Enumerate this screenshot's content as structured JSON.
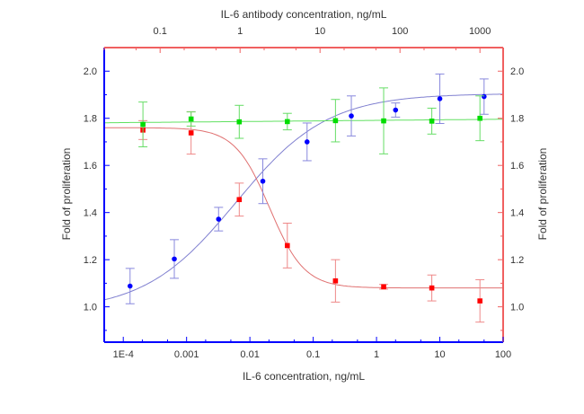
{
  "chart_data": {
    "type": "scatter",
    "title": "",
    "xlabel": "IL-6 concentration, ng/mL",
    "x2label": "IL-6 antibody concentration, ng/mL",
    "ylabel": "Fold of proliferation",
    "y2label": "Fold of proliferation",
    "x_scale": "log",
    "xlim": [
      5e-05,
      100
    ],
    "x2lim": [
      0.02,
      1950
    ],
    "ylim": [
      0.85,
      2.1
    ],
    "x_ticks": [
      "1E-4",
      "0.001",
      "0.01",
      "0.1",
      "1",
      "10",
      "100"
    ],
    "x2_ticks": [
      "0.1",
      "1",
      "10",
      "100",
      "1000"
    ],
    "y_ticks": [
      "1.0",
      "1.2",
      "1.4",
      "1.6",
      "1.8",
      "2.0"
    ],
    "y2_ticks": [
      "1.0",
      "1.2",
      "1.4",
      "1.6",
      "1.8",
      "2.0"
    ],
    "grid": false,
    "axis_colors": {
      "bottom": "#0000ff",
      "left": "#0000ff",
      "top": "#f06060",
      "right": "#f06060"
    },
    "series": [
      {
        "axis": "bottom",
        "color": "#0000ff",
        "marker": "circle",
        "fit": "sigmoid",
        "x": [
          0.000128,
          0.00064,
          0.0032,
          0.016,
          0.08,
          0.4,
          2,
          10,
          50
        ],
        "y": [
          1.088,
          1.203,
          1.372,
          1.533,
          1.7,
          1.81,
          1.835,
          1.883,
          1.892
        ],
        "err": [
          0.075,
          0.082,
          0.05,
          0.095,
          0.08,
          0.085,
          0.03,
          0.105,
          0.075
        ]
      },
      {
        "axis": "top",
        "color": "#ff0000",
        "marker": "square",
        "fit": "sigmoid",
        "x": [
          0.061,
          0.244,
          0.977,
          3.9,
          15.6,
          62.5,
          250,
          1000
        ],
        "y": [
          1.75,
          1.738,
          1.455,
          1.26,
          1.11,
          1.085,
          1.08,
          1.025
        ],
        "err": [
          0.04,
          0.09,
          0.07,
          0.095,
          0.09,
          0.01,
          0.055,
          0.09
        ]
      },
      {
        "axis": "top",
        "color": "#00dd00",
        "marker": "square",
        "fit": "linear",
        "x": [
          0.061,
          0.244,
          0.977,
          3.9,
          15.6,
          62.5,
          250,
          1000
        ],
        "y": [
          1.774,
          1.797,
          1.785,
          1.786,
          1.79,
          1.789,
          1.788,
          1.8
        ],
        "err": [
          0.095,
          0.03,
          0.07,
          0.035,
          0.09,
          0.14,
          0.055,
          0.095
        ]
      }
    ]
  }
}
